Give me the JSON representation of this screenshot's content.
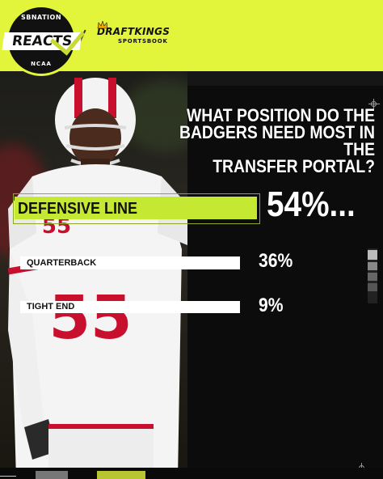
{
  "branding": {
    "reacts_top": "SBNATION",
    "reacts_main": "REACTS",
    "reacts_bottom": "NCAA",
    "sponsor_name": "DRAFTKINGS",
    "sponsor_sub": "SPORTSBOOK"
  },
  "colors": {
    "accent": "#e2f53a",
    "leading_bar": "#c5e832",
    "bar": "#ffffff",
    "background": "#0c0c0c"
  },
  "question": {
    "line1": "WHAT POSITION DO THE",
    "line2": "BADGERS NEED MOST IN THE",
    "line3": "TRANSFER PORTAL?"
  },
  "chart_data": {
    "type": "bar",
    "orientation": "horizontal",
    "title": "WHAT POSITION DO THE BADGERS NEED MOST IN THE TRANSFER PORTAL?",
    "categories": [
      "DEFENSIVE LINE",
      "QUARTERBACK",
      "TIGHT END"
    ],
    "values": [
      54,
      36,
      9
    ],
    "value_labels": [
      "54%",
      "36%",
      "9%"
    ],
    "unit": "%",
    "highlight_index": 0
  },
  "player": {
    "jersey_number": "55"
  }
}
